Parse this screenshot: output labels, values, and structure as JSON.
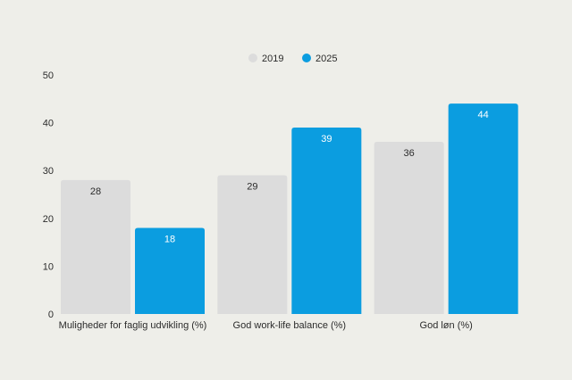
{
  "chart_data": {
    "type": "bar",
    "categories": [
      "Muligheder for faglig udvikling (%)",
      "God work-life balance (%)",
      "God løn (%)"
    ],
    "series": [
      {
        "name": "2019",
        "values": [
          28,
          29,
          36
        ],
        "color": "#dcdcdc",
        "label_color": "#2b2b2b"
      },
      {
        "name": "2025",
        "values": [
          18,
          39,
          44
        ],
        "color": "#0b9de0",
        "label_color": "#ffffff"
      }
    ],
    "ylim": [
      0,
      50
    ],
    "yticks": [
      0,
      10,
      20,
      30,
      40,
      50
    ],
    "legend_position": "top-center",
    "grid": false,
    "title": "",
    "xlabel": "",
    "ylabel": ""
  }
}
